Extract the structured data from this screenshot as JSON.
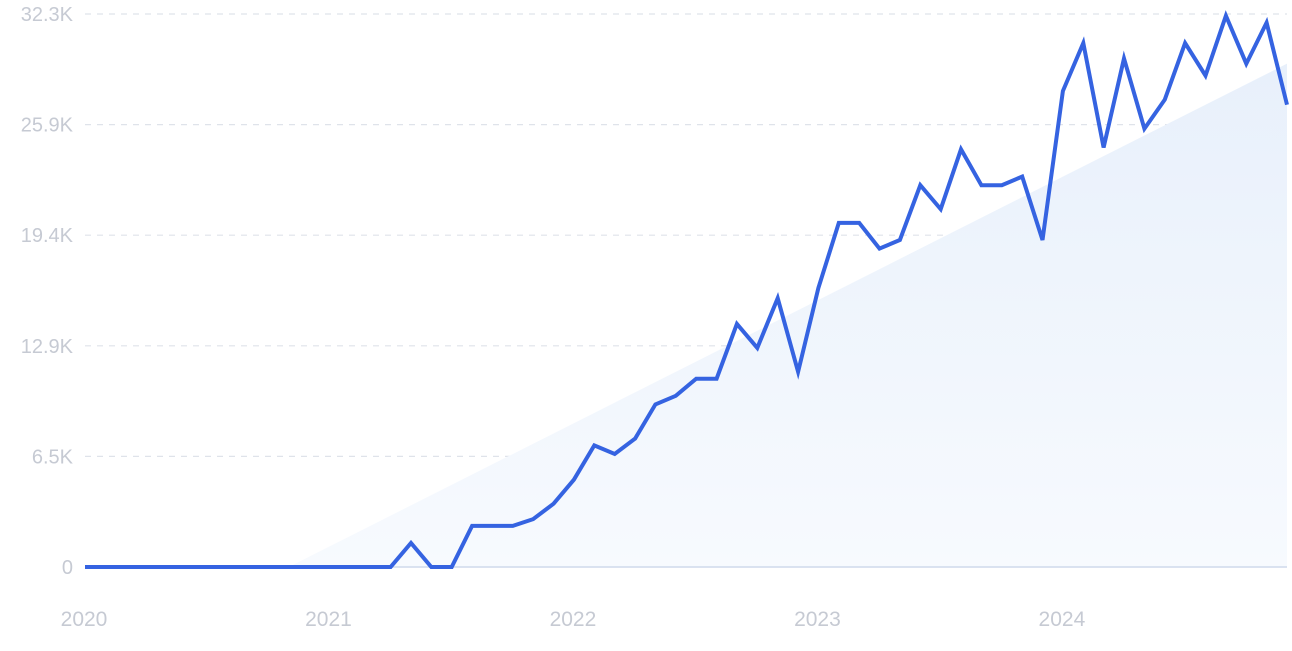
{
  "chart_data": {
    "type": "line",
    "title": "",
    "xlabel": "",
    "ylabel": "",
    "y_ticks": [
      "0",
      "6.5K",
      "12.9K",
      "19.4K",
      "25.9K",
      "32.3K"
    ],
    "y_tick_values": [
      0,
      6460,
      12920,
      19380,
      25840,
      32300
    ],
    "x_ticks": [
      "2020",
      "2021",
      "2022",
      "2023",
      "2024"
    ],
    "ylim": [
      0,
      32300
    ],
    "xlim": [
      "2020-01",
      "2024-12"
    ],
    "grid": "horizontal-dashed",
    "legend": "none",
    "series": [
      {
        "x": [
          "2020-01",
          "2020-02",
          "2020-03",
          "2020-04",
          "2020-05",
          "2020-06",
          "2020-07",
          "2020-08",
          "2020-09",
          "2020-10",
          "2020-11",
          "2020-12",
          "2021-01",
          "2021-02",
          "2021-03",
          "2021-04",
          "2021-05",
          "2021-06",
          "2021-07",
          "2021-08",
          "2021-09",
          "2021-10",
          "2021-11",
          "2021-12",
          "2022-01",
          "2022-02",
          "2022-03",
          "2022-04",
          "2022-05",
          "2022-06",
          "2022-07",
          "2022-08",
          "2022-09",
          "2022-10",
          "2022-11",
          "2022-12",
          "2023-01",
          "2023-02",
          "2023-03",
          "2023-04",
          "2023-05",
          "2023-06",
          "2023-07",
          "2023-08",
          "2023-09",
          "2023-10",
          "2023-11",
          "2023-12",
          "2024-01",
          "2024-02",
          "2024-03",
          "2024-04",
          "2024-05",
          "2024-06",
          "2024-07",
          "2024-08",
          "2024-09",
          "2024-10",
          "2024-11",
          "2024-12"
        ],
        "values": [
          0,
          0,
          0,
          0,
          0,
          0,
          0,
          0,
          0,
          0,
          0,
          0,
          0,
          0,
          0,
          0,
          1400,
          0,
          0,
          2400,
          2400,
          2400,
          2800,
          3700,
          5100,
          7100,
          6600,
          7500,
          9500,
          10000,
          11000,
          11000,
          14200,
          12800,
          15700,
          11400,
          16300,
          20100,
          20100,
          18600,
          19100,
          22300,
          20900,
          24400,
          22300,
          22300,
          22800,
          19100,
          27800,
          30600,
          24500,
          29700,
          25600,
          27300,
          30600,
          28700,
          32200,
          29400,
          31800,
          27000
        ]
      }
    ],
    "trend": {
      "from": [
        "2020-11",
        0
      ],
      "to": [
        "2024-12",
        29400
      ]
    },
    "colors": {
      "line": "#3563e1",
      "area_top": "#e8f0fb",
      "area_bottom": "#f7fafe",
      "grid": "#dfe3ea",
      "axis": "#cfd9ec",
      "tick_label": "#c6cad3"
    }
  }
}
